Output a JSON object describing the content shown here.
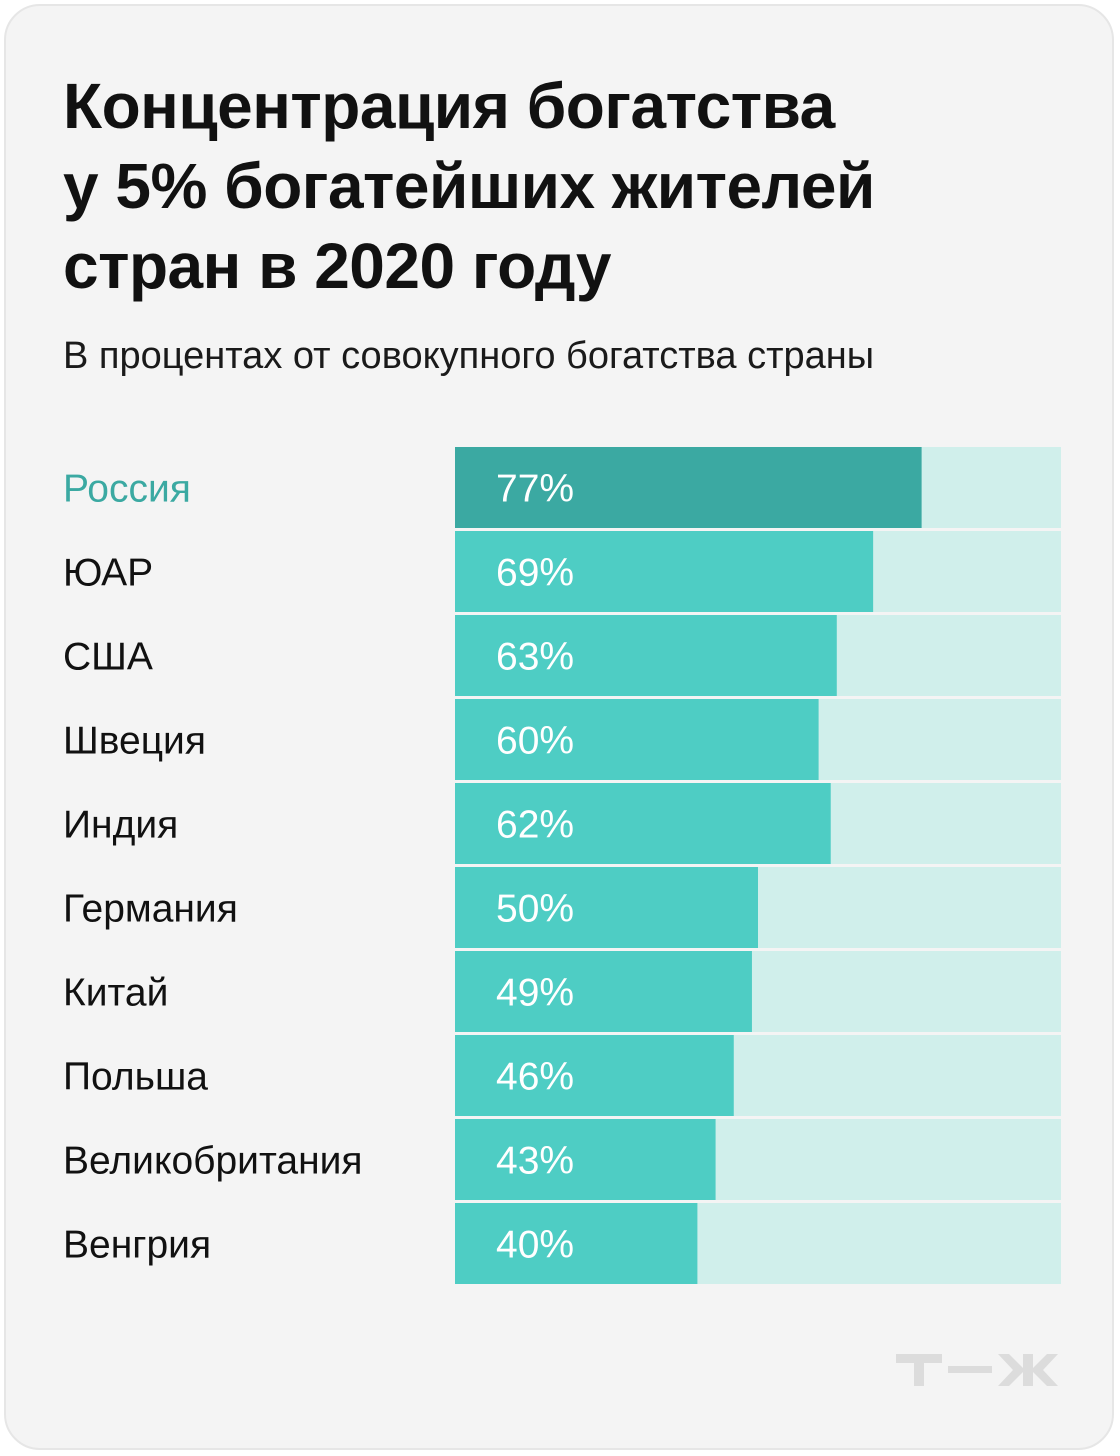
{
  "header": {
    "title_lines": [
      "Концентрация богатства",
      "у 5% богатейших жителей",
      "стран в 2020 году"
    ],
    "subtitle": "В процентах от совокупного богатства страны"
  },
  "colors": {
    "highlight_bar": "#3ba9a2",
    "highlight_label": "#3ba9a2",
    "bar": "#4ecdc4",
    "track": "#d0efeb",
    "label": "#111111",
    "value_text": "#ffffff",
    "logo": "#dcdcdc"
  },
  "logo": {
    "icon": "tzh-logo-icon"
  },
  "chart_data": {
    "type": "bar",
    "orientation": "horizontal",
    "categories": [
      "Россия",
      "ЮАР",
      "США",
      "Швеция",
      "Индия",
      "Германия",
      "Китай",
      "Польша",
      "Великобритания",
      "Венгрия"
    ],
    "values": [
      77,
      69,
      63,
      60,
      62,
      50,
      49,
      46,
      43,
      40
    ],
    "value_labels": [
      "77%",
      "69%",
      "63%",
      "60%",
      "62%",
      "50%",
      "49%",
      "46%",
      "43%",
      "40%"
    ],
    "highlight_index": 0,
    "xlim": [
      0,
      100
    ],
    "grid": false,
    "legend": "none"
  }
}
